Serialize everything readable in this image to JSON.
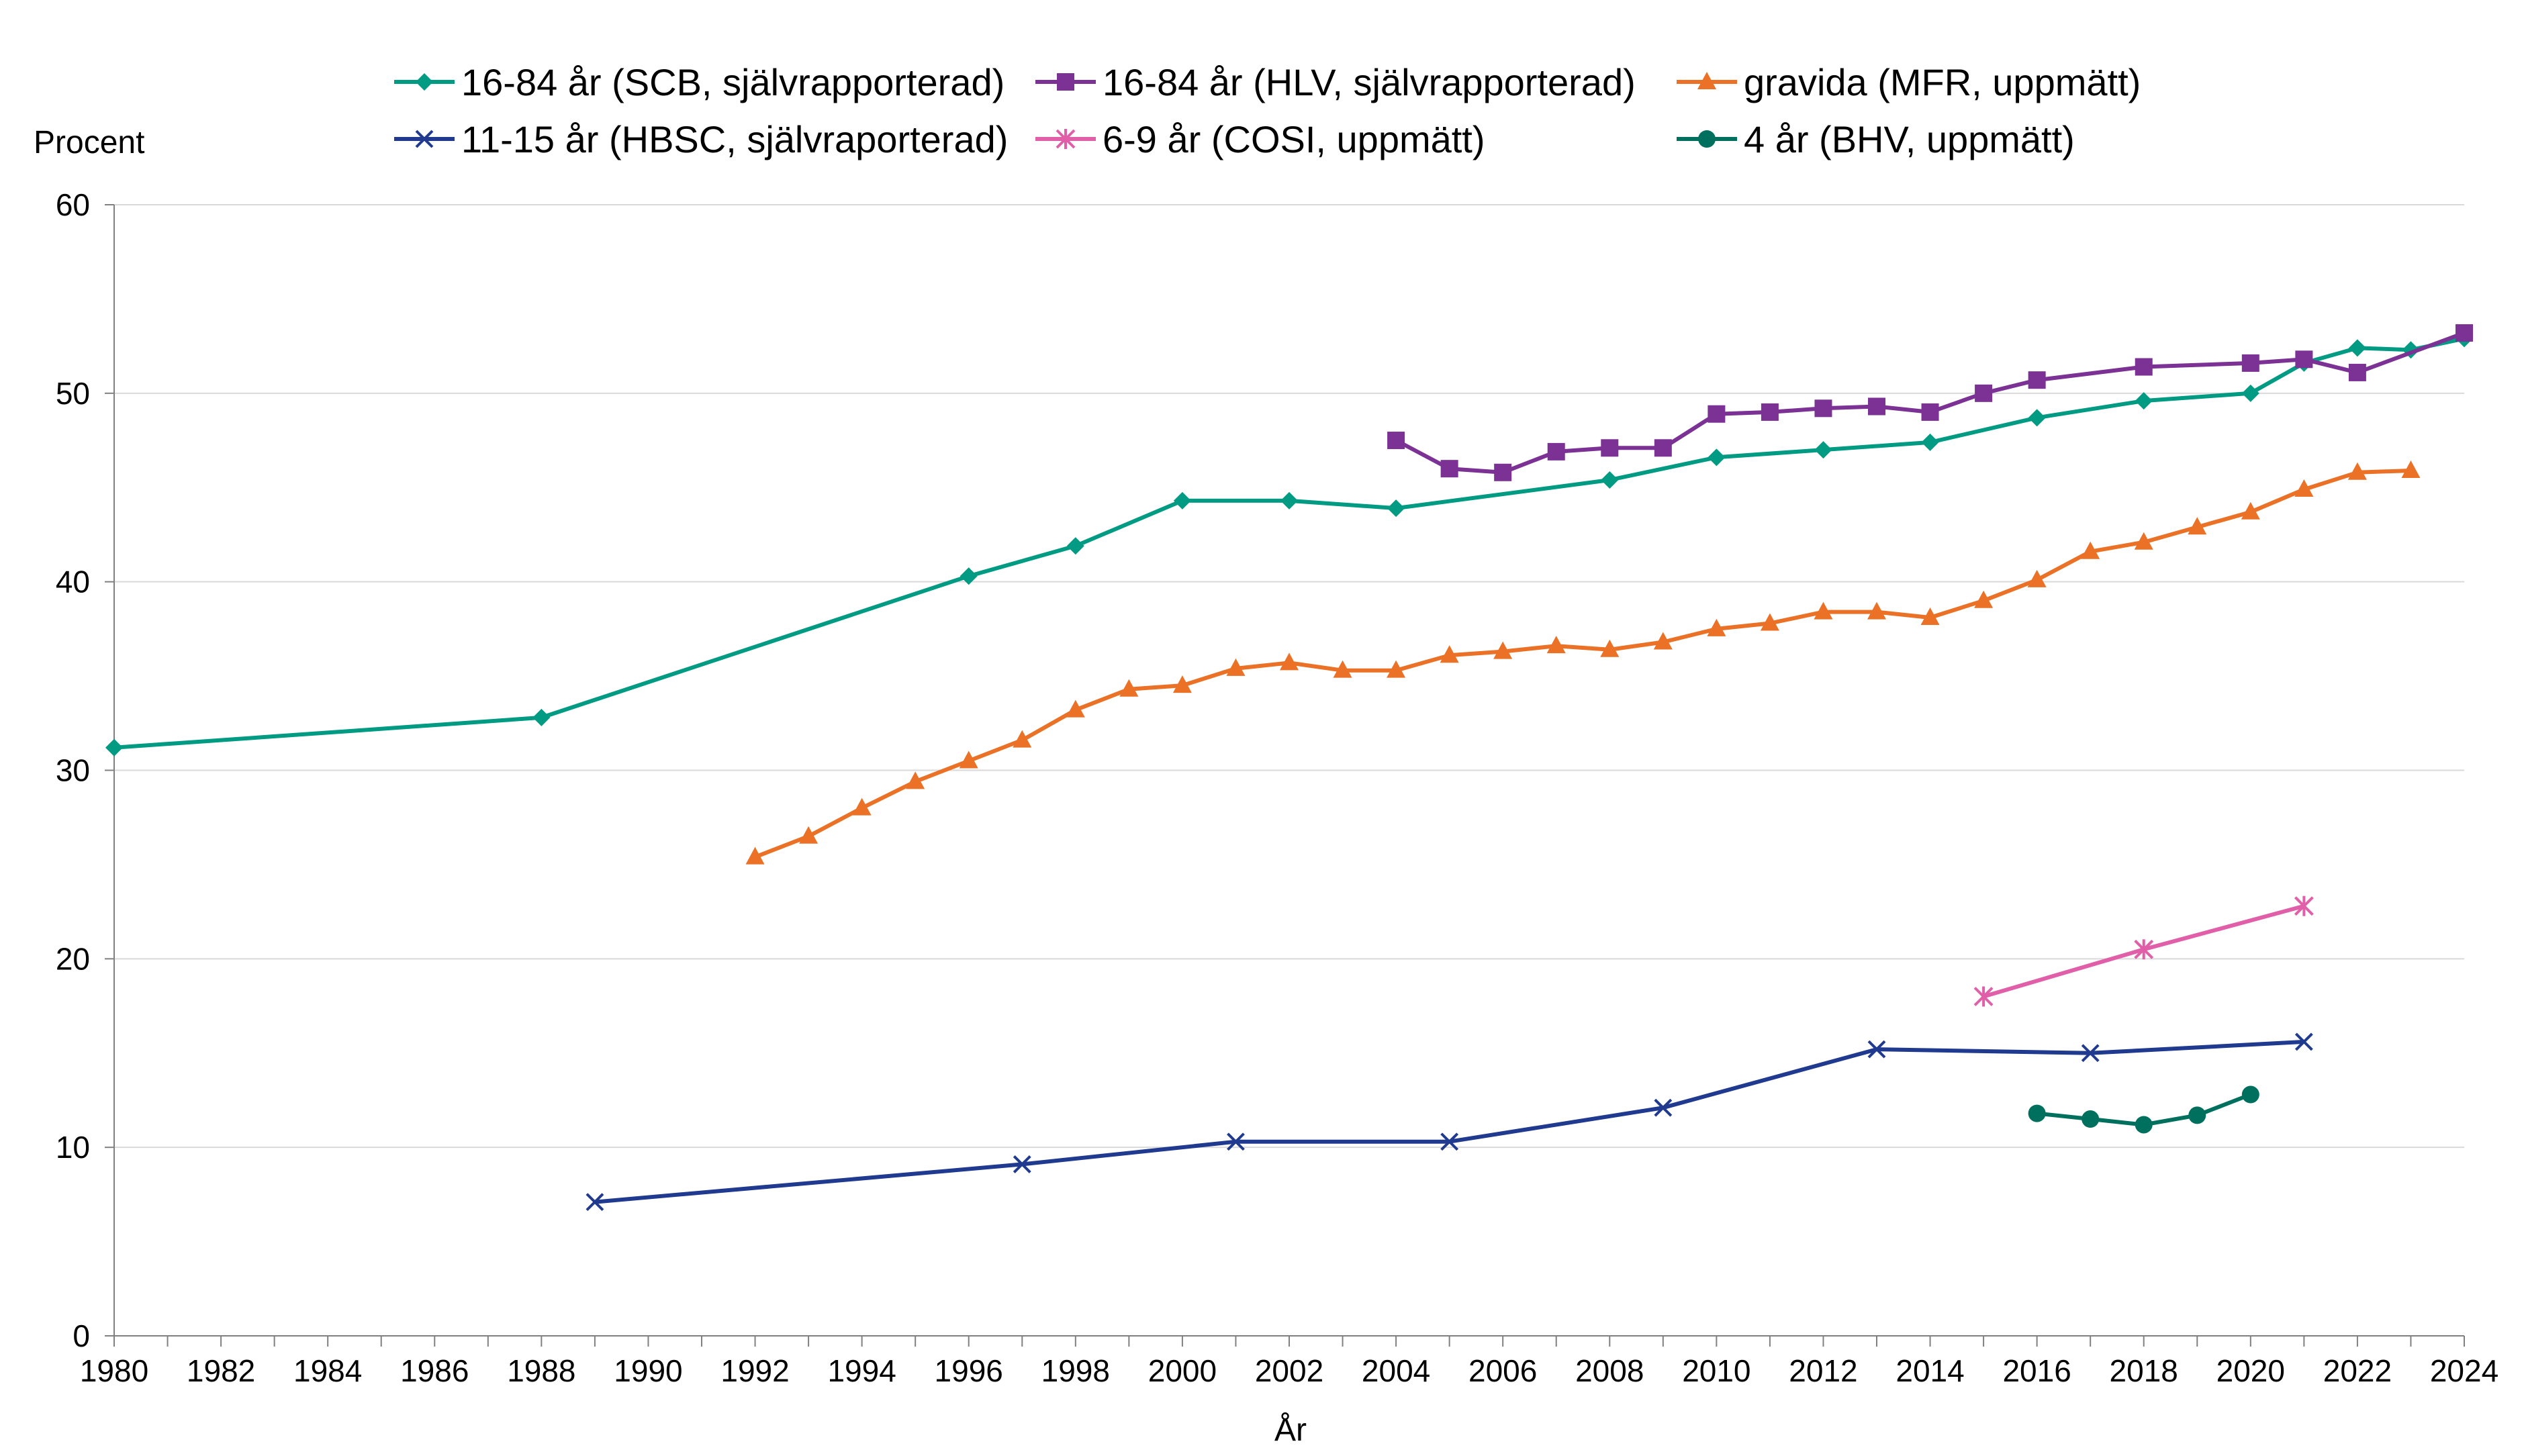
{
  "chart_data": {
    "type": "line",
    "title": "",
    "xlabel": "År",
    "ylabel": "Procent",
    "xlim": [
      1980,
      2024
    ],
    "ylim": [
      0,
      60
    ],
    "xticks_major": [
      1980,
      1982,
      1984,
      1986,
      1988,
      1990,
      1992,
      1994,
      1996,
      1998,
      2000,
      2002,
      2004,
      2006,
      2008,
      2010,
      2012,
      2014,
      2016,
      2018,
      2020,
      2022,
      2024
    ],
    "yticks": [
      0,
      10,
      20,
      30,
      40,
      50,
      60
    ],
    "grid": "horizontal",
    "legend": "top",
    "series": [
      {
        "name": "16-84 år (SCB, självrapporterad)",
        "color": "#009B82",
        "marker": "diamond",
        "x": [
          1980,
          1988,
          1996,
          1998,
          2000,
          2002,
          2004,
          2008,
          2010,
          2012,
          2014,
          2016,
          2018,
          2020,
          2021,
          2022,
          2023,
          2024
        ],
        "y": [
          31.2,
          32.8,
          40.3,
          41.9,
          44.3,
          44.3,
          43.9,
          45.4,
          46.6,
          47.0,
          47.4,
          48.7,
          49.6,
          50.0,
          51.6,
          52.4,
          52.3,
          52.9
        ]
      },
      {
        "name": "16-84 år (HLV, självrapporterad)",
        "color": "#7B3294",
        "marker": "square",
        "x": [
          2004,
          2005,
          2006,
          2007,
          2008,
          2009,
          2010,
          2011,
          2012,
          2013,
          2014,
          2015,
          2016,
          2018,
          2020,
          2021,
          2022,
          2024
        ],
        "y": [
          47.5,
          46.0,
          45.8,
          46.9,
          47.1,
          47.1,
          48.9,
          49.0,
          49.2,
          49.3,
          49.0,
          50.0,
          50.7,
          51.4,
          51.6,
          51.8,
          51.1,
          53.2
        ]
      },
      {
        "name": "gravida (MFR, uppmätt)",
        "color": "#EA7125",
        "marker": "triangle",
        "x": [
          1992,
          1993,
          1994,
          1995,
          1996,
          1997,
          1998,
          1999,
          2000,
          2001,
          2002,
          2003,
          2004,
          2005,
          2006,
          2007,
          2008,
          2009,
          2010,
          2011,
          2012,
          2013,
          2014,
          2015,
          2016,
          2017,
          2018,
          2019,
          2020,
          2021,
          2022,
          2023
        ],
        "y": [
          25.4,
          26.5,
          28.0,
          29.4,
          30.5,
          31.6,
          33.2,
          34.3,
          34.5,
          35.4,
          35.7,
          35.3,
          35.3,
          36.1,
          36.3,
          36.6,
          36.4,
          36.8,
          37.5,
          37.8,
          38.4,
          38.4,
          38.1,
          39.0,
          40.1,
          41.6,
          42.1,
          42.9,
          43.7,
          44.9,
          45.8,
          45.9
        ]
      },
      {
        "name": "11-15 år (HBSC, självraporterad)",
        "color": "#1F3A8F",
        "marker": "x",
        "x": [
          1989,
          1997,
          2001,
          2005,
          2009,
          2013,
          2017,
          2021
        ],
        "y": [
          7.1,
          9.1,
          10.3,
          10.3,
          12.1,
          15.2,
          15.0,
          15.6
        ]
      },
      {
        "name": "6-9 år (COSI, uppmätt)",
        "color": "#E05FA8",
        "marker": "asterisk",
        "x": [
          2015,
          2018,
          2021
        ],
        "y": [
          18.0,
          20.5,
          22.8
        ]
      },
      {
        "name": "4 år (BHV, uppmätt)",
        "color": "#00705E",
        "marker": "circle",
        "x": [
          2016,
          2017,
          2018,
          2019,
          2020
        ],
        "y": [
          11.8,
          11.5,
          11.2,
          11.7,
          12.8
        ]
      }
    ]
  }
}
